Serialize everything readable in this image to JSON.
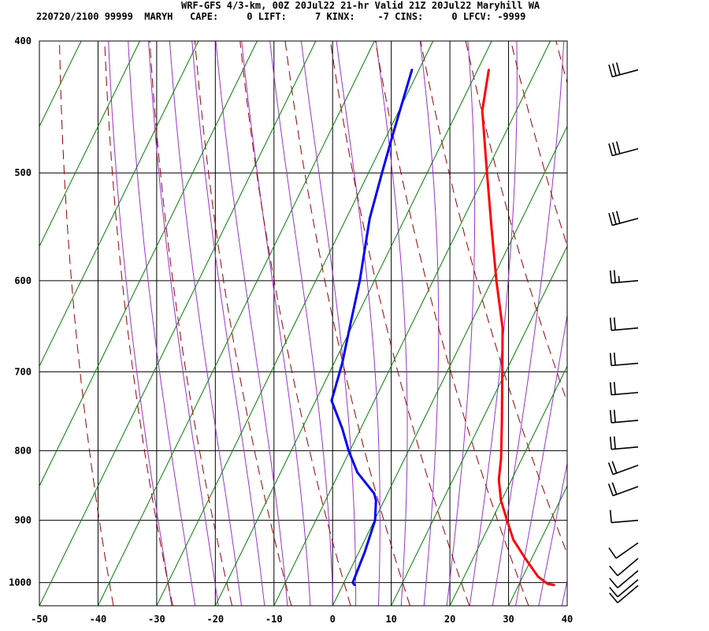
{
  "header": {
    "title": "WRF-GFS 4/3-km, 00Z 20Jul22 21-hr Valid 21Z 20Jul22 Maryhill WA",
    "subtitle": "220720/2100 99999  MARYH   CAPE:     0 LIFT:     7 KINX:    -7 CINS:     0 LFCV: -9999"
  },
  "chart_data": {
    "type": "line",
    "title": "WRF-GFS 4/3-km, 00Z 20Jul22 21-hr Valid 21Z 20Jul22 Maryhill WA",
    "xlabel": "",
    "ylabel": "",
    "x_scale": "skewed temperature (deg C)",
    "y_scale": "log pressure (hPa)",
    "xlim": [
      -50,
      40
    ],
    "ylim": [
      1040,
      400
    ],
    "x_ticks": [
      -50,
      -40,
      -30,
      -20,
      -10,
      0,
      10,
      20,
      30,
      40
    ],
    "y_ticks": [
      400,
      500,
      600,
      700,
      800,
      900,
      1000
    ],
    "grid": true,
    "colors": {
      "temperature": "#ff0000",
      "dewpoint": "#0000ff",
      "isotherm": "#008000",
      "dry_adiabat": "#990000",
      "moist_adiabat": "#9933cc",
      "grid": "#000000"
    },
    "series": [
      {
        "key": "temperature",
        "points": [
          [
            1004,
            36.0
          ],
          [
            1002,
            34.8
          ],
          [
            990,
            32.6
          ],
          [
            960,
            28.9
          ],
          [
            930,
            25.3
          ],
          [
            900,
            22.6
          ],
          [
            870,
            19.9
          ],
          [
            840,
            17.8
          ],
          [
            810,
            16.4
          ],
          [
            760,
            13.4
          ],
          [
            700,
            9.4
          ],
          [
            650,
            5.8
          ],
          [
            600,
            0.8
          ],
          [
            550,
            -4.3
          ],
          [
            500,
            -9.8
          ],
          [
            450,
            -15.8
          ],
          [
            420,
            -18.1
          ]
        ]
      },
      {
        "key": "dewpoint",
        "points": [
          [
            1004,
            2.0
          ],
          [
            1000,
            1.5
          ],
          [
            950,
            1.0
          ],
          [
            900,
            0.1
          ],
          [
            870,
            -1.4
          ],
          [
            860,
            -2.3
          ],
          [
            830,
            -6.9
          ],
          [
            800,
            -10.2
          ],
          [
            770,
            -13.2
          ],
          [
            735,
            -17.3
          ],
          [
            690,
            -18.6
          ],
          [
            645,
            -20.5
          ],
          [
            600,
            -22.5
          ],
          [
            540,
            -26.0
          ],
          [
            500,
            -27.7
          ],
          [
            470,
            -29.0
          ],
          [
            420,
            -31.2
          ]
        ]
      }
    ],
    "wind_barbs": [
      {
        "pressure": 420,
        "direction_deg": 255,
        "speed_kt": 30
      },
      {
        "pressure": 480,
        "direction_deg": 255,
        "speed_kt": 30
      },
      {
        "pressure": 540,
        "direction_deg": 255,
        "speed_kt": 30
      },
      {
        "pressure": 600,
        "direction_deg": 265,
        "speed_kt": 25
      },
      {
        "pressure": 650,
        "direction_deg": 265,
        "speed_kt": 20
      },
      {
        "pressure": 690,
        "direction_deg": 265,
        "speed_kt": 20
      },
      {
        "pressure": 725,
        "direction_deg": 265,
        "speed_kt": 20
      },
      {
        "pressure": 760,
        "direction_deg": 265,
        "speed_kt": 20
      },
      {
        "pressure": 795,
        "direction_deg": 265,
        "speed_kt": 20
      },
      {
        "pressure": 820,
        "direction_deg": 250,
        "speed_kt": 20
      },
      {
        "pressure": 850,
        "direction_deg": 250,
        "speed_kt": 20
      },
      {
        "pressure": 900,
        "direction_deg": 265,
        "speed_kt": 10
      },
      {
        "pressure": 935,
        "direction_deg": 235,
        "speed_kt": 10
      },
      {
        "pressure": 960,
        "direction_deg": 230,
        "speed_kt": 10
      },
      {
        "pressure": 980,
        "direction_deg": 230,
        "speed_kt": 10
      },
      {
        "pressure": 995,
        "direction_deg": 230,
        "speed_kt": 10
      },
      {
        "pressure": 1005,
        "direction_deg": 230,
        "speed_kt": 10
      }
    ]
  }
}
